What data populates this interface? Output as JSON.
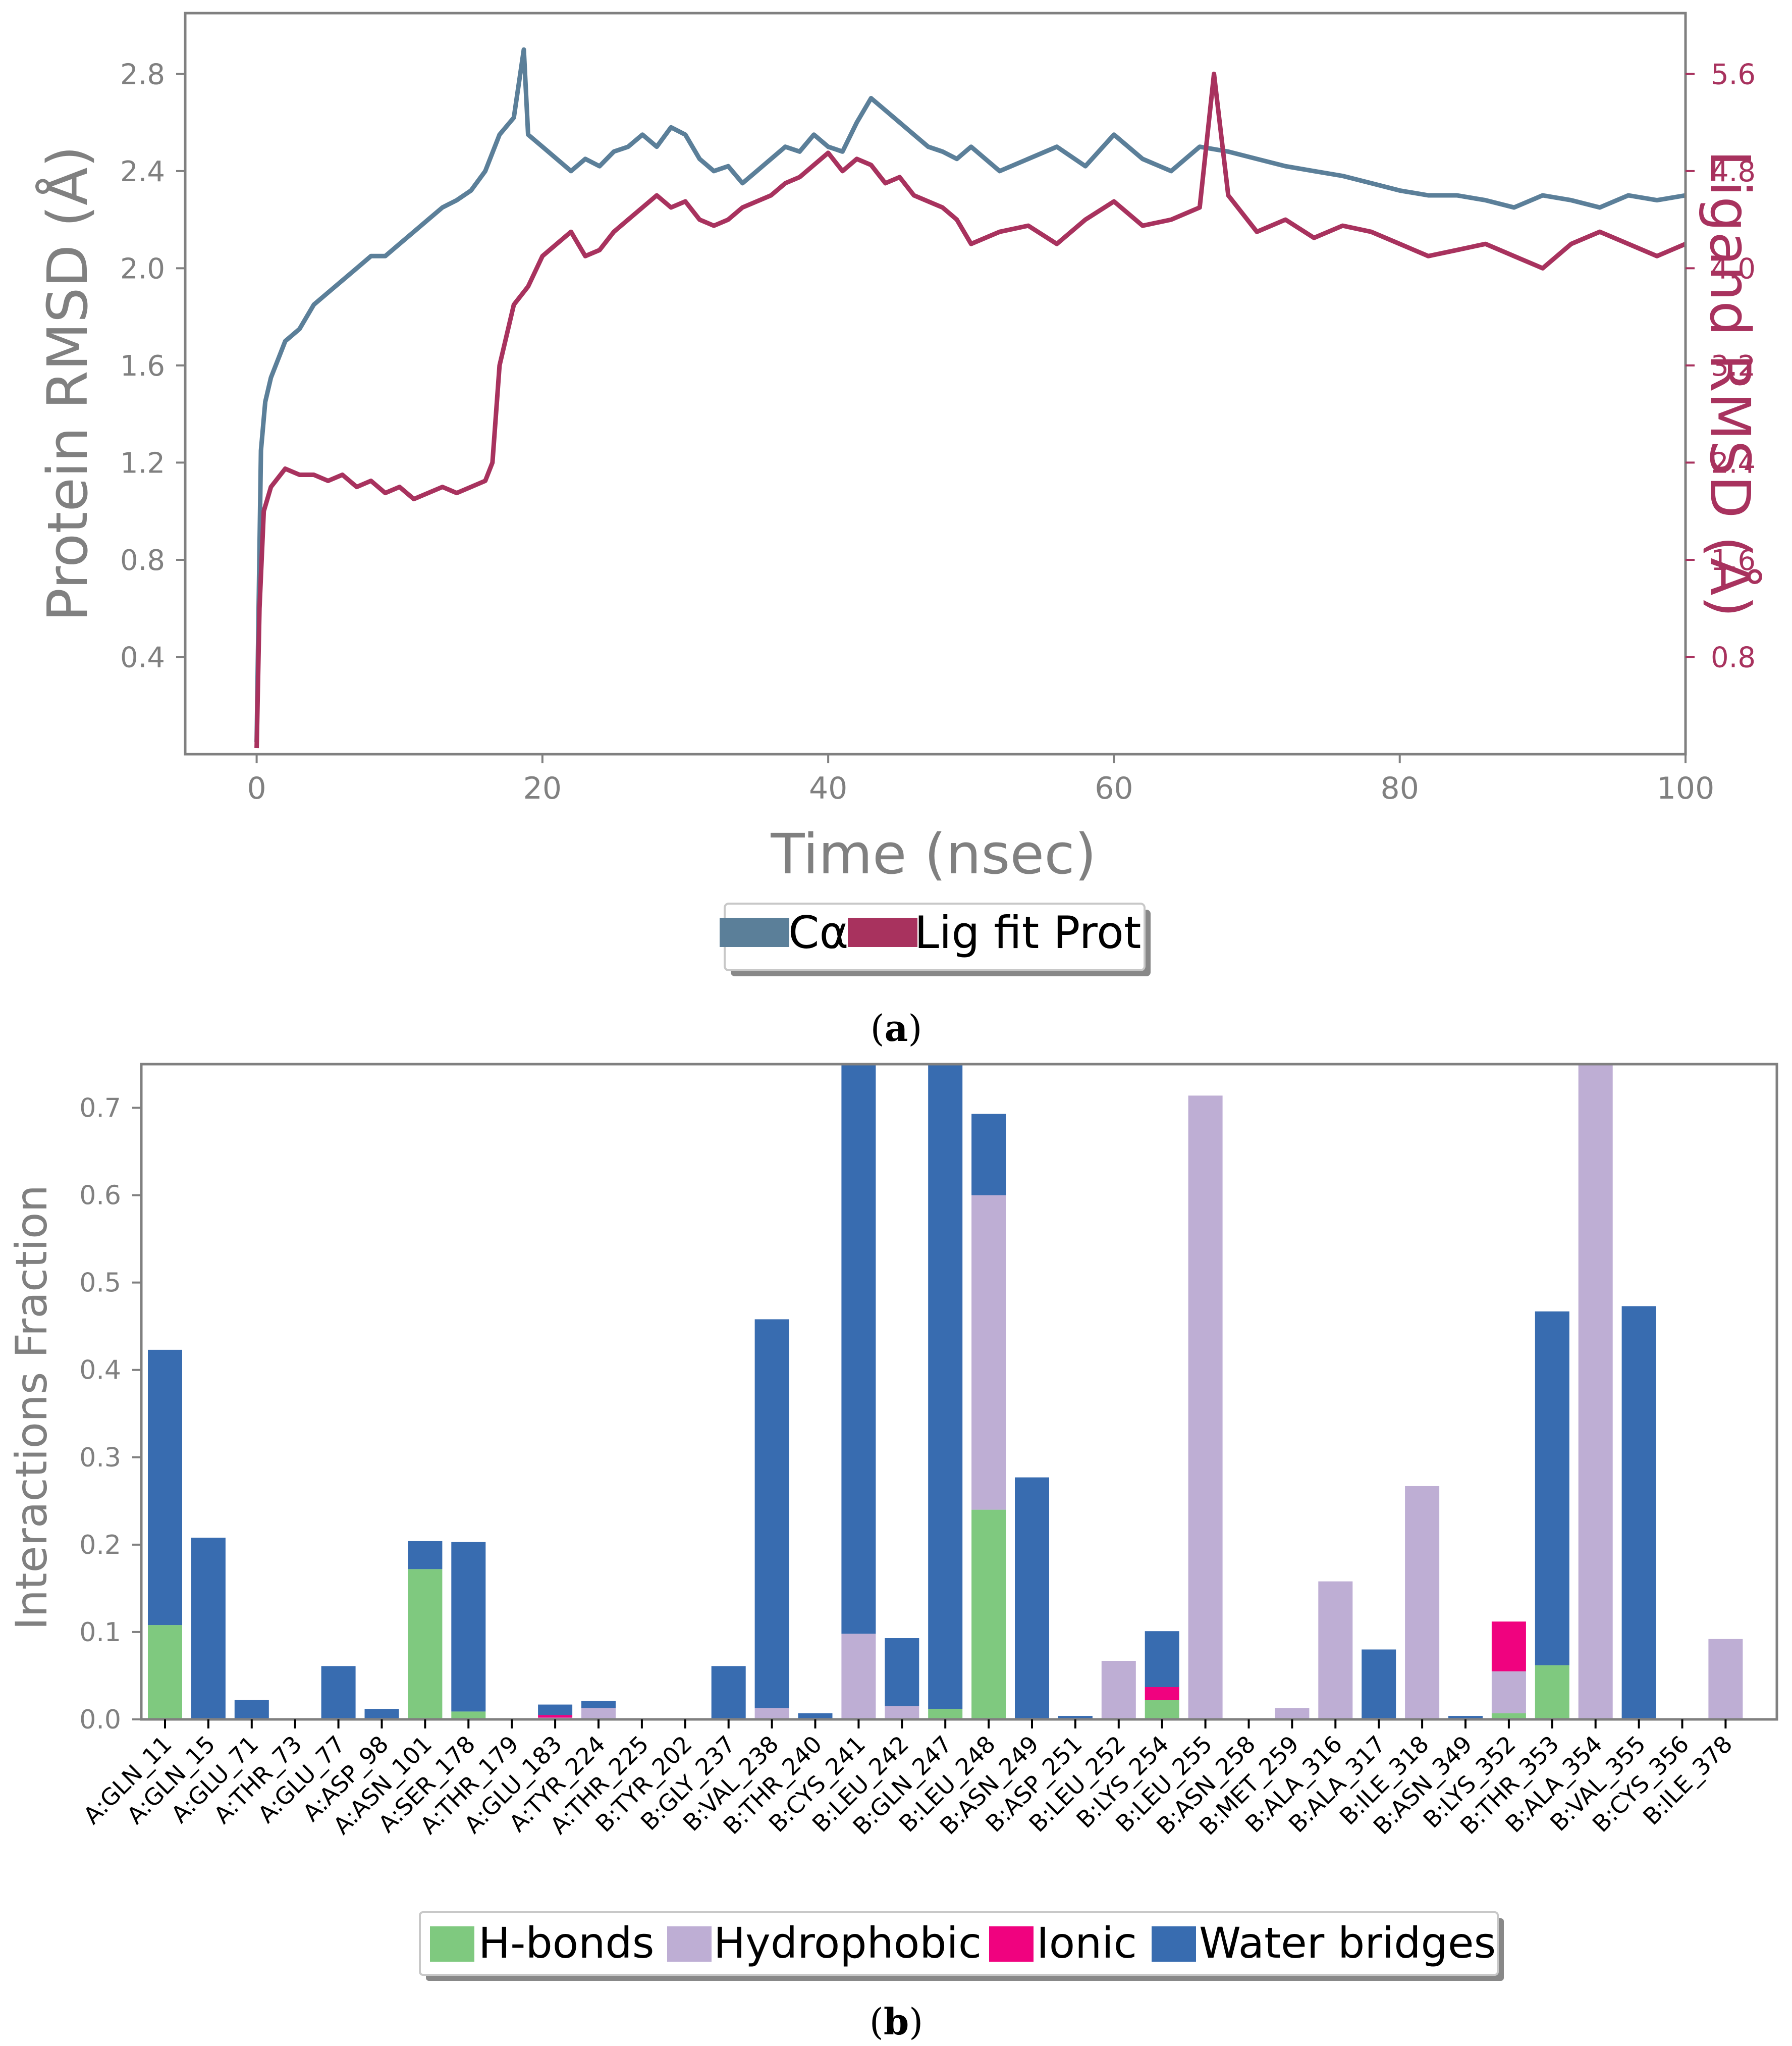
{
  "chart_data": [
    {
      "type": "line",
      "caption": "a",
      "xlabel": "Time (nsec)",
      "ylabel": "Protein RMSD (Å)",
      "y2label": "Ligand RMSD (Å)",
      "xlim": [
        -5,
        100
      ],
      "ylim": [
        0,
        3.05
      ],
      "y2lim": [
        0,
        6.1
      ],
      "xticks": [
        "0",
        "20",
        "40",
        "60",
        "80",
        "100"
      ],
      "yticks": [
        "0.4",
        "0.8",
        "1.2",
        "1.6",
        "2.0",
        "2.4",
        "2.8"
      ],
      "y2ticks": [
        "0.8",
        "1.6",
        "2.4",
        "3.2",
        "4.0",
        "4.8",
        "5.6"
      ],
      "legend": [
        "Cα",
        "Lig fit Prot"
      ],
      "colors": {
        "calpha": "#5b7f99",
        "ligand": "#a8325e",
        "axis": "#808080"
      },
      "series": [
        {
          "name": "Cα",
          "axis": "left",
          "x": [
            0,
            0.3,
            0.6,
            1,
            2,
            3,
            4,
            5,
            6,
            7,
            8,
            9,
            10,
            11,
            12,
            13,
            14,
            15,
            16,
            17,
            18,
            18.7,
            19,
            20,
            21,
            22,
            23,
            24,
            25,
            26,
            27,
            28,
            29,
            30,
            31,
            32,
            33,
            34,
            35,
            36,
            37,
            38,
            39,
            40,
            41,
            42,
            43,
            44,
            45,
            46,
            47,
            48,
            49,
            50,
            52,
            54,
            56,
            58,
            60,
            62,
            64,
            66,
            68,
            70,
            72,
            74,
            76,
            78,
            80,
            82,
            84,
            86,
            88,
            90,
            92,
            94,
            96,
            98,
            100
          ],
          "values": [
            0.05,
            1.25,
            1.45,
            1.55,
            1.7,
            1.75,
            1.85,
            1.9,
            1.95,
            2.0,
            2.05,
            2.05,
            2.1,
            2.15,
            2.2,
            2.25,
            2.28,
            2.32,
            2.4,
            2.55,
            2.62,
            2.9,
            2.55,
            2.5,
            2.45,
            2.4,
            2.45,
            2.42,
            2.48,
            2.5,
            2.55,
            2.5,
            2.58,
            2.55,
            2.45,
            2.4,
            2.42,
            2.35,
            2.4,
            2.45,
            2.5,
            2.48,
            2.55,
            2.5,
            2.48,
            2.6,
            2.7,
            2.65,
            2.6,
            2.55,
            2.5,
            2.48,
            2.45,
            2.5,
            2.4,
            2.45,
            2.5,
            2.42,
            2.55,
            2.45,
            2.4,
            2.5,
            2.48,
            2.45,
            2.42,
            2.4,
            2.38,
            2.35,
            2.32,
            2.3,
            2.3,
            2.28,
            2.25,
            2.3,
            2.28,
            2.25,
            2.3,
            2.28,
            2.3
          ]
        },
        {
          "name": "Lig fit Prot",
          "axis": "right",
          "x": [
            0,
            0.2,
            0.5,
            1,
            2,
            3,
            4,
            5,
            6,
            7,
            8,
            9,
            10,
            11,
            12,
            13,
            14,
            15,
            16,
            16.5,
            17,
            18,
            19,
            20,
            21,
            22,
            23,
            24,
            25,
            26,
            27,
            28,
            29,
            30,
            31,
            32,
            33,
            34,
            35,
            36,
            37,
            38,
            39,
            40,
            41,
            42,
            43,
            44,
            45,
            46,
            47,
            48,
            49,
            50,
            52,
            54,
            56,
            58,
            60,
            62,
            64,
            66,
            67,
            68,
            70,
            72,
            74,
            76,
            78,
            80,
            82,
            84,
            86,
            88,
            90,
            92,
            94,
            96,
            98,
            100
          ],
          "values": [
            0.05,
            1.2,
            2.0,
            2.2,
            2.35,
            2.3,
            2.3,
            2.25,
            2.3,
            2.2,
            2.25,
            2.15,
            2.2,
            2.1,
            2.15,
            2.2,
            2.15,
            2.2,
            2.25,
            2.4,
            3.2,
            3.7,
            3.85,
            4.1,
            4.2,
            4.3,
            4.1,
            4.15,
            4.3,
            4.4,
            4.5,
            4.6,
            4.5,
            4.55,
            4.4,
            4.35,
            4.4,
            4.5,
            4.55,
            4.6,
            4.7,
            4.75,
            4.85,
            4.95,
            4.8,
            4.9,
            4.85,
            4.7,
            4.75,
            4.6,
            4.55,
            4.5,
            4.4,
            4.2,
            4.3,
            4.35,
            4.2,
            4.4,
            4.55,
            4.35,
            4.4,
            4.5,
            5.6,
            4.6,
            4.3,
            4.4,
            4.25,
            4.35,
            4.3,
            4.2,
            4.1,
            4.15,
            4.2,
            4.1,
            4.0,
            4.2,
            4.3,
            4.2,
            4.1,
            4.2
          ]
        }
      ]
    },
    {
      "type": "bar",
      "stacked": true,
      "caption": "b",
      "xlabel": "",
      "ylabel": "Interactions Fraction",
      "ylim": [
        0,
        0.75
      ],
      "yticks": [
        "0.0",
        "0.1",
        "0.2",
        "0.3",
        "0.4",
        "0.5",
        "0.6",
        "0.7"
      ],
      "categories": [
        "A:GLN_11",
        "A:GLN_15",
        "A:GLU_71",
        "A:THR_73",
        "A:GLU_77",
        "A:ASP_98",
        "A:ASN_101",
        "A:SER_178",
        "A:THR_179",
        "A:GLU_183",
        "A:TYR_224",
        "A:THR_225",
        "B:TYR_202",
        "B:GLY_237",
        "B:VAL_238",
        "B:THR_240",
        "B:CYS_241",
        "B:LEU_242",
        "B:GLN_247",
        "B:LEU_248",
        "B:ASN_249",
        "B:ASP_251",
        "B:LEU_252",
        "B:LYS_254",
        "B:LEU_255",
        "B:ASN_258",
        "B:MET_259",
        "B:ALA_316",
        "B:ALA_317",
        "B:ILE_318",
        "B:ASN_349",
        "B:LYS_352",
        "B:THR_353",
        "B:ALA_354",
        "B:VAL_355",
        "B:CYS_356",
        "B:ILE_378"
      ],
      "legend": [
        "H-bonds",
        "Hydrophobic",
        "Ionic",
        "Water bridges"
      ],
      "colors": {
        "hbonds": "#7fc97f",
        "hydrophobic": "#beaed4",
        "ionic": "#f0027f",
        "water": "#386cb0"
      },
      "series": [
        {
          "name": "H-bonds",
          "values": [
            0.108,
            0,
            0,
            0,
            0,
            0,
            0.172,
            0.009,
            0,
            0,
            0,
            0,
            0,
            0,
            0,
            0,
            0,
            0,
            0.012,
            0.24,
            0,
            0,
            0,
            0.022,
            0,
            0,
            0,
            0,
            0,
            0,
            0,
            0.007,
            0.062,
            0,
            0,
            0,
            0
          ]
        },
        {
          "name": "Hydrophobic",
          "values": [
            0,
            0,
            0,
            0,
            0,
            0,
            0,
            0,
            0,
            0.002,
            0.013,
            0,
            0,
            0,
            0.013,
            0,
            0.098,
            0.015,
            0,
            0.36,
            0,
            0,
            0.067,
            0,
            0.714,
            0,
            0.013,
            0.158,
            0,
            0.267,
            0,
            0.048,
            0,
            0.75,
            0,
            0,
            0.092
          ]
        },
        {
          "name": "Ionic",
          "values": [
            0,
            0,
            0,
            0,
            0,
            0,
            0,
            0,
            0,
            0.003,
            0,
            0,
            0,
            0,
            0,
            0,
            0,
            0,
            0,
            0,
            0,
            0,
            0,
            0.015,
            0,
            0,
            0,
            0,
            0,
            0,
            0,
            0.057,
            0,
            0,
            0,
            0,
            0
          ]
        },
        {
          "name": "Water bridges",
          "values": [
            0.315,
            0.208,
            0.022,
            0,
            0.061,
            0.012,
            0.032,
            0.194,
            0,
            0.012,
            0.008,
            0,
            0,
            0.061,
            0.445,
            0.007,
            0.652,
            0.078,
            0.738,
            0.093,
            0.277,
            0.004,
            0,
            0.064,
            0,
            0,
            0,
            0,
            0.08,
            0,
            0.004,
            0,
            0.405,
            0,
            0.473,
            0,
            0
          ]
        }
      ]
    }
  ]
}
